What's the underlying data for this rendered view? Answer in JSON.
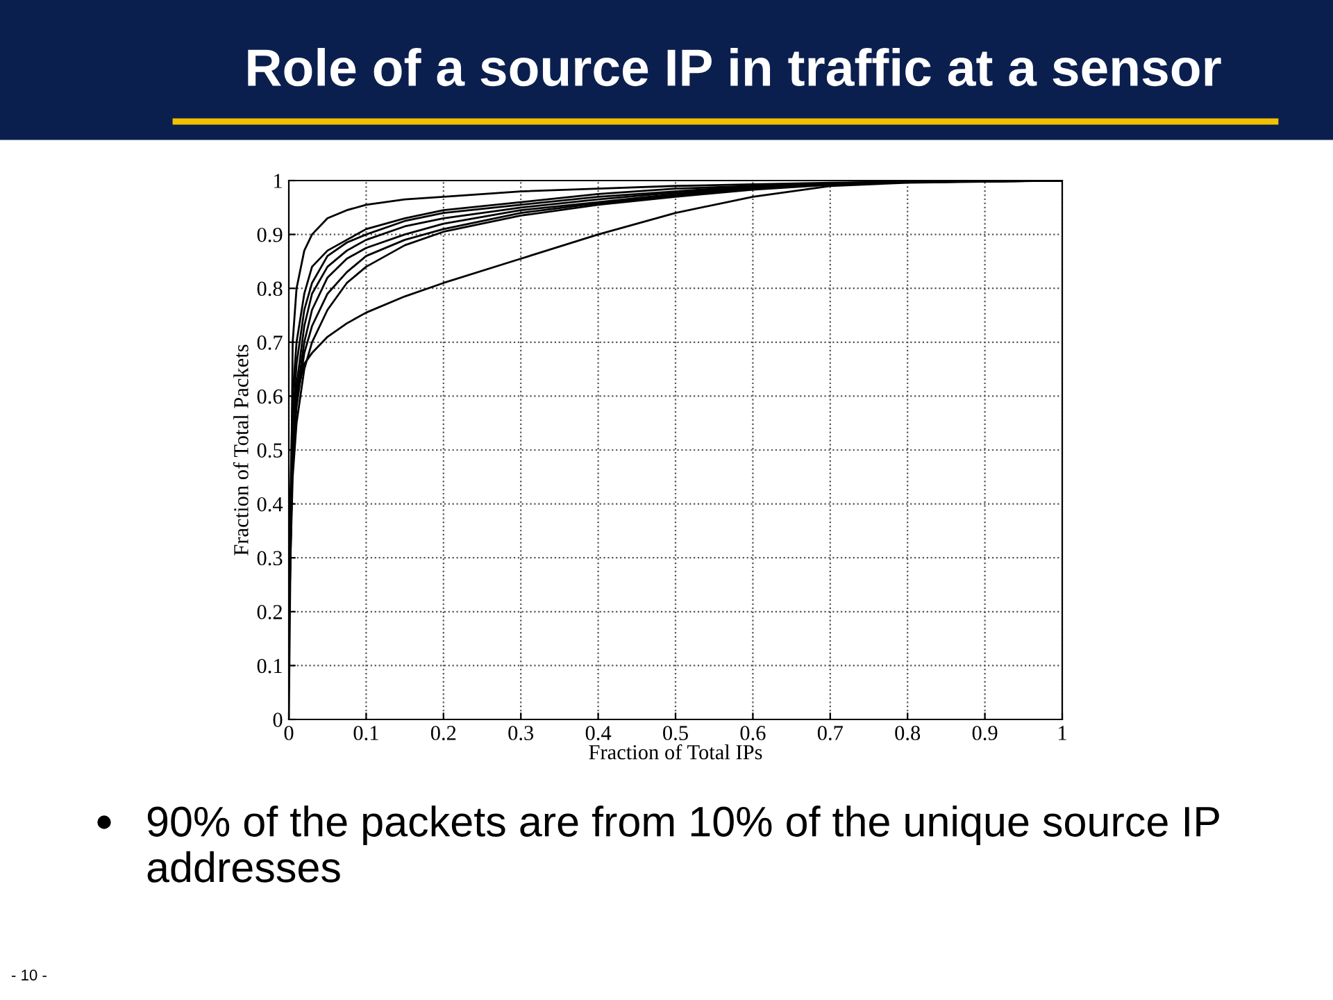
{
  "chart_data": {
    "type": "line",
    "title": "Role of a source IP in traffic at a sensor",
    "xlabel": "Fraction of Total IPs",
    "ylabel": "Fraction of Total Packets",
    "annotations": [
      "90% of the packets are from 10% of the unique source IP addresses",
      "- 10 -"
    ],
    "x": [
      0,
      0.005,
      0.01,
      0.02,
      0.03,
      0.05,
      0.075,
      0.1,
      0.15,
      0.2,
      0.3,
      0.4,
      0.5,
      0.6,
      0.7,
      0.8,
      1
    ],
    "series": [
      {
        "color": "#000000",
        "values": [
          0,
          0.7,
          0.8,
          0.87,
          0.9,
          0.93,
          0.945,
          0.955,
          0.965,
          0.97,
          0.98,
          0.985,
          0.99,
          0.993,
          0.996,
          0.998,
          1
        ]
      },
      {
        "color": "#000000",
        "x": [
          0.001,
          0.005,
          0.01,
          0.02,
          0.03,
          0.05,
          0.075,
          0.1,
          0.15,
          0.2,
          0.3,
          0.4,
          0.5,
          0.6,
          0.7,
          0.8,
          1
        ],
        "values": [
          0.35,
          0.6,
          0.7,
          0.79,
          0.84,
          0.87,
          0.89,
          0.91,
          0.93,
          0.945,
          0.96,
          0.975,
          0.985,
          0.99,
          0.995,
          0.998,
          1
        ]
      },
      {
        "color": "#000000",
        "x": [
          0.001,
          0.005,
          0.01,
          0.02,
          0.03,
          0.05,
          0.075,
          0.1,
          0.15,
          0.2,
          0.3,
          0.4,
          0.5,
          0.6,
          0.7,
          0.8,
          1
        ],
        "values": [
          0.32,
          0.55,
          0.66,
          0.76,
          0.81,
          0.86,
          0.885,
          0.9,
          0.925,
          0.94,
          0.955,
          0.97,
          0.98,
          0.99,
          0.995,
          0.998,
          1
        ]
      },
      {
        "color": "#000000",
        "x": [
          0.001,
          0.005,
          0.01,
          0.02,
          0.03,
          0.05,
          0.075,
          0.1,
          0.15,
          0.2,
          0.3,
          0.4,
          0.5,
          0.6,
          0.7,
          0.8,
          1
        ],
        "values": [
          0.3,
          0.5,
          0.62,
          0.73,
          0.79,
          0.84,
          0.87,
          0.89,
          0.915,
          0.93,
          0.95,
          0.965,
          0.978,
          0.988,
          0.994,
          0.998,
          1
        ]
      },
      {
        "color": "#000000",
        "x": [
          0.001,
          0.005,
          0.01,
          0.02,
          0.03,
          0.05,
          0.075,
          0.1,
          0.15,
          0.2,
          0.3,
          0.4,
          0.5,
          0.6,
          0.7,
          0.8,
          1
        ],
        "values": [
          0.28,
          0.5,
          0.6,
          0.7,
          0.76,
          0.82,
          0.855,
          0.875,
          0.9,
          0.92,
          0.945,
          0.96,
          0.975,
          0.986,
          0.993,
          0.997,
          1
        ]
      },
      {
        "color": "#000000",
        "x": [
          0.001,
          0.005,
          0.01,
          0.02,
          0.03,
          0.05,
          0.075,
          0.1,
          0.15,
          0.2,
          0.3,
          0.4,
          0.5,
          0.6,
          0.7,
          0.8,
          1
        ],
        "values": [
          0.26,
          0.48,
          0.58,
          0.68,
          0.73,
          0.79,
          0.83,
          0.86,
          0.89,
          0.91,
          0.94,
          0.958,
          0.972,
          0.985,
          0.993,
          0.997,
          1
        ]
      },
      {
        "color": "#000000",
        "x": [
          0.001,
          0.005,
          0.01,
          0.02,
          0.03,
          0.05,
          0.075,
          0.1,
          0.15,
          0.2,
          0.3,
          0.4,
          0.5,
          0.6,
          0.7,
          0.8,
          1
        ],
        "values": [
          0.24,
          0.45,
          0.55,
          0.65,
          0.7,
          0.76,
          0.81,
          0.84,
          0.88,
          0.905,
          0.935,
          0.955,
          0.97,
          0.983,
          0.992,
          0.997,
          1
        ]
      },
      {
        "color": "#000000",
        "x": [
          0.001,
          0.005,
          0.01,
          0.02,
          0.03,
          0.05,
          0.075,
          0.1,
          0.15,
          0.2,
          0.3,
          0.4,
          0.5,
          0.6,
          0.7,
          0.8,
          1
        ],
        "values": [
          0.22,
          0.5,
          0.6,
          0.66,
          0.68,
          0.71,
          0.735,
          0.755,
          0.785,
          0.81,
          0.855,
          0.9,
          0.94,
          0.97,
          0.99,
          0.996,
          1
        ]
      }
    ],
    "xlim": [
      0,
      1
    ],
    "ylim": [
      0,
      1
    ],
    "xticks": [
      0,
      0.1,
      0.2,
      0.3,
      0.4,
      0.5,
      0.6,
      0.7,
      0.8,
      0.9,
      1
    ],
    "yticks": [
      0,
      0.1,
      0.2,
      0.3,
      0.4,
      0.5,
      0.6,
      0.7,
      0.8,
      0.9,
      1
    ],
    "grid": true,
    "line_style": "solid"
  }
}
